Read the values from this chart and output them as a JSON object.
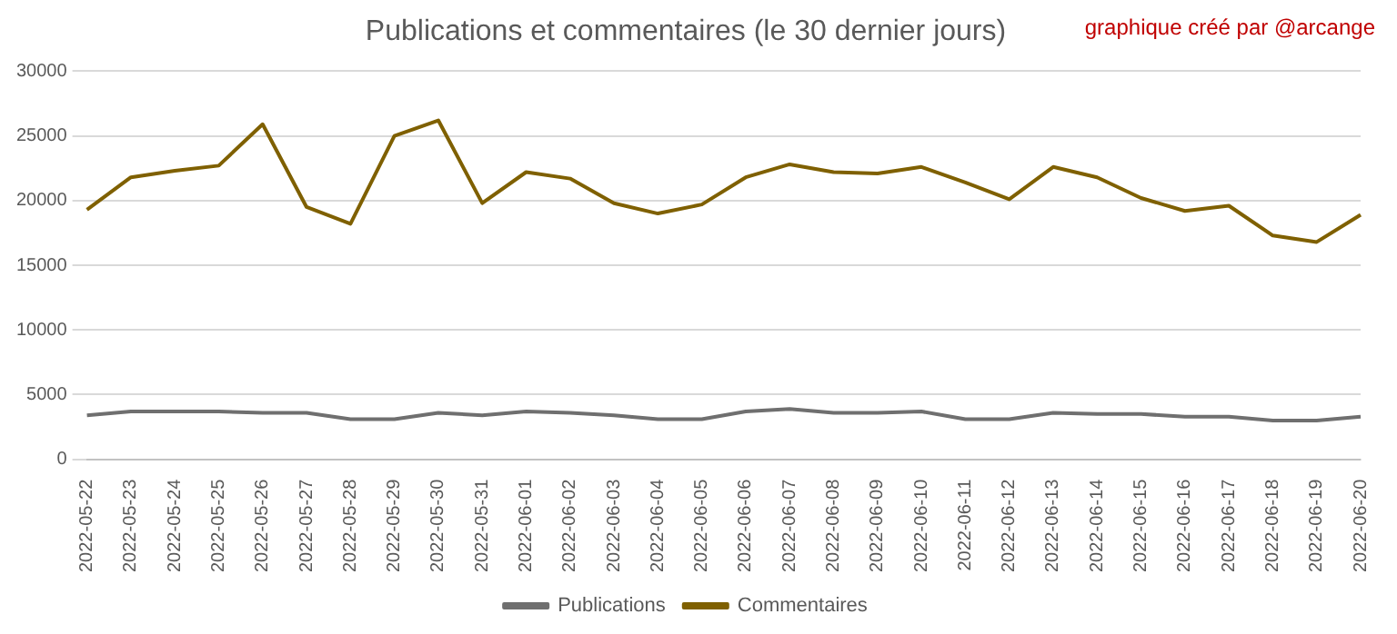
{
  "chart_data": {
    "type": "line",
    "title": "Publications et commentaires (le 30 dernier jours)",
    "annotations": [
      "graphique créé par @arcange"
    ],
    "categories": [
      "2022-05-22",
      "2022-05-23",
      "2022-05-24",
      "2022-05-25",
      "2022-05-26",
      "2022-05-27",
      "2022-05-28",
      "2022-05-29",
      "2022-05-30",
      "2022-05-31",
      "2022-06-01",
      "2022-06-02",
      "2022-06-03",
      "2022-06-04",
      "2022-06-05",
      "2022-06-06",
      "2022-06-07",
      "2022-06-08",
      "2022-06-09",
      "2022-06-10",
      "2022-06-11",
      "2022-06-12",
      "2022-06-13",
      "2022-06-14",
      "2022-06-15",
      "2022-06-16",
      "2022-06-17",
      "2022-06-18",
      "2022-06-19",
      "2022-06-20"
    ],
    "series": [
      {
        "name": "Publications",
        "color": "#6f6f6f",
        "values": [
          3400,
          3700,
          3700,
          3700,
          3600,
          3600,
          3100,
          3100,
          3600,
          3400,
          3700,
          3600,
          3400,
          3100,
          3100,
          3700,
          3900,
          3600,
          3600,
          3700,
          3100,
          3100,
          3600,
          3500,
          3500,
          3300,
          3300,
          3000,
          3000,
          3300
        ]
      },
      {
        "name": "Commentaires",
        "color": "#7f6000",
        "values": [
          19300,
          21800,
          22300,
          22700,
          25900,
          19500,
          18200,
          25000,
          26200,
          19800,
          22200,
          21700,
          19800,
          19000,
          19700,
          21800,
          22800,
          22200,
          22100,
          22600,
          21400,
          20100,
          22600,
          21800,
          20200,
          19200,
          19600,
          17300,
          16800,
          18900
        ]
      }
    ],
    "ylim": [
      0,
      30000
    ],
    "yticks": [
      0,
      5000,
      10000,
      15000,
      20000,
      25000,
      30000
    ],
    "grid": "y",
    "legend": "bottom",
    "marker": "none",
    "line_style": "solid"
  }
}
